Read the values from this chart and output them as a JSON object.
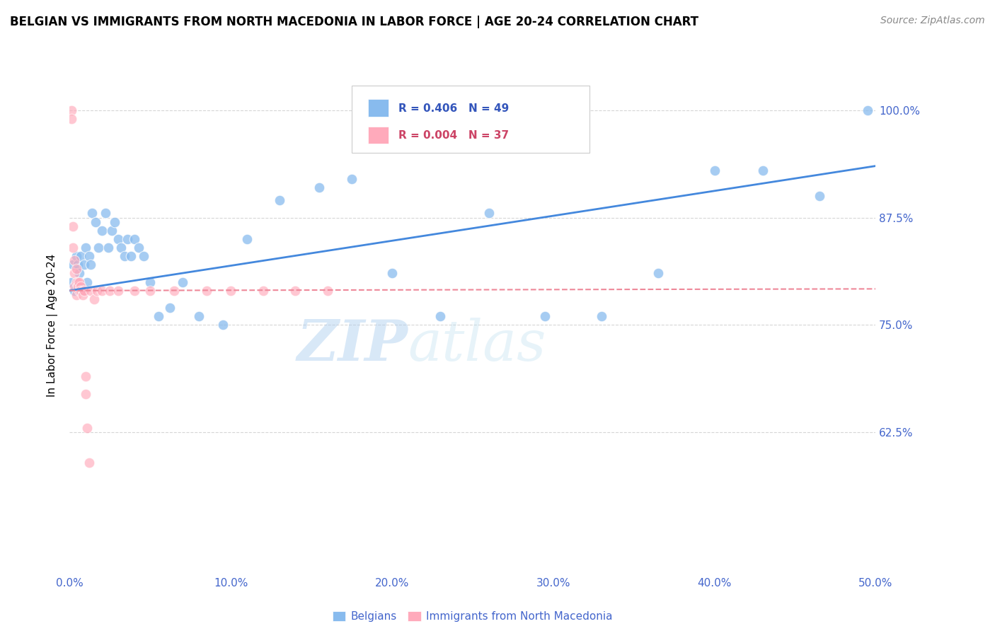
{
  "title": "BELGIAN VS IMMIGRANTS FROM NORTH MACEDONIA IN LABOR FORCE | AGE 20-24 CORRELATION CHART",
  "source": "Source: ZipAtlas.com",
  "ylabel": "In Labor Force | Age 20-24",
  "xlim": [
    0.0,
    0.5
  ],
  "ylim": [
    0.46,
    1.04
  ],
  "xticks": [
    0.0,
    0.1,
    0.2,
    0.3,
    0.4,
    0.5
  ],
  "xticklabels": [
    "0.0%",
    "10.0%",
    "20.0%",
    "30.0%",
    "40.0%",
    "50.0%"
  ],
  "yticks": [
    0.625,
    0.75,
    0.875,
    1.0
  ],
  "yticklabels": [
    "62.5%",
    "75.0%",
    "87.5%",
    "100.0%"
  ],
  "grid_color": "#cccccc",
  "background_color": "#ffffff",
  "blue_color": "#88bbee",
  "pink_color": "#ffaabb",
  "blue_line_color": "#4488dd",
  "pink_line_color": "#ee8899",
  "legend_label_blue": "Belgians",
  "legend_label_pink": "Immigrants from North Macedonia",
  "watermark_zip": "ZIP",
  "watermark_atlas": "atlas",
  "blue_scatter_x": [
    0.001,
    0.002,
    0.003,
    0.004,
    0.005,
    0.006,
    0.007,
    0.008,
    0.009,
    0.01,
    0.011,
    0.012,
    0.013,
    0.014,
    0.016,
    0.018,
    0.02,
    0.022,
    0.024,
    0.026,
    0.028,
    0.03,
    0.032,
    0.034,
    0.036,
    0.038,
    0.04,
    0.043,
    0.046,
    0.05,
    0.055,
    0.062,
    0.07,
    0.08,
    0.095,
    0.11,
    0.13,
    0.155,
    0.175,
    0.2,
    0.23,
    0.26,
    0.295,
    0.33,
    0.365,
    0.4,
    0.43,
    0.465,
    0.495
  ],
  "blue_scatter_y": [
    0.8,
    0.82,
    0.79,
    0.83,
    0.82,
    0.81,
    0.83,
    0.79,
    0.82,
    0.84,
    0.8,
    0.83,
    0.82,
    0.88,
    0.87,
    0.84,
    0.86,
    0.88,
    0.84,
    0.86,
    0.87,
    0.85,
    0.84,
    0.83,
    0.85,
    0.83,
    0.85,
    0.84,
    0.83,
    0.8,
    0.76,
    0.77,
    0.8,
    0.76,
    0.75,
    0.85,
    0.895,
    0.91,
    0.92,
    0.81,
    0.76,
    0.88,
    0.76,
    0.76,
    0.81,
    0.93,
    0.93,
    0.9,
    1.0
  ],
  "pink_scatter_x": [
    0.001,
    0.001,
    0.002,
    0.002,
    0.003,
    0.003,
    0.003,
    0.004,
    0.004,
    0.004,
    0.005,
    0.005,
    0.006,
    0.006,
    0.007,
    0.007,
    0.008,
    0.008,
    0.009,
    0.01,
    0.01,
    0.011,
    0.012,
    0.013,
    0.015,
    0.017,
    0.02,
    0.025,
    0.03,
    0.04,
    0.05,
    0.065,
    0.085,
    0.1,
    0.12,
    0.14,
    0.16
  ],
  "pink_scatter_y": [
    1.0,
    0.99,
    0.865,
    0.84,
    0.825,
    0.81,
    0.795,
    0.815,
    0.8,
    0.785,
    0.8,
    0.795,
    0.8,
    0.79,
    0.795,
    0.79,
    0.79,
    0.785,
    0.79,
    0.69,
    0.67,
    0.63,
    0.59,
    0.79,
    0.78,
    0.79,
    0.79,
    0.79,
    0.79,
    0.79,
    0.79,
    0.79,
    0.79,
    0.79,
    0.79,
    0.79,
    0.79
  ],
  "blue_trend_x0": 0.0,
  "blue_trend_x1": 0.5,
  "blue_trend_y0": 0.79,
  "blue_trend_y1": 0.935,
  "pink_trend_x0": 0.0,
  "pink_trend_x1": 0.5,
  "pink_trend_y0": 0.79,
  "pink_trend_y1": 0.792
}
